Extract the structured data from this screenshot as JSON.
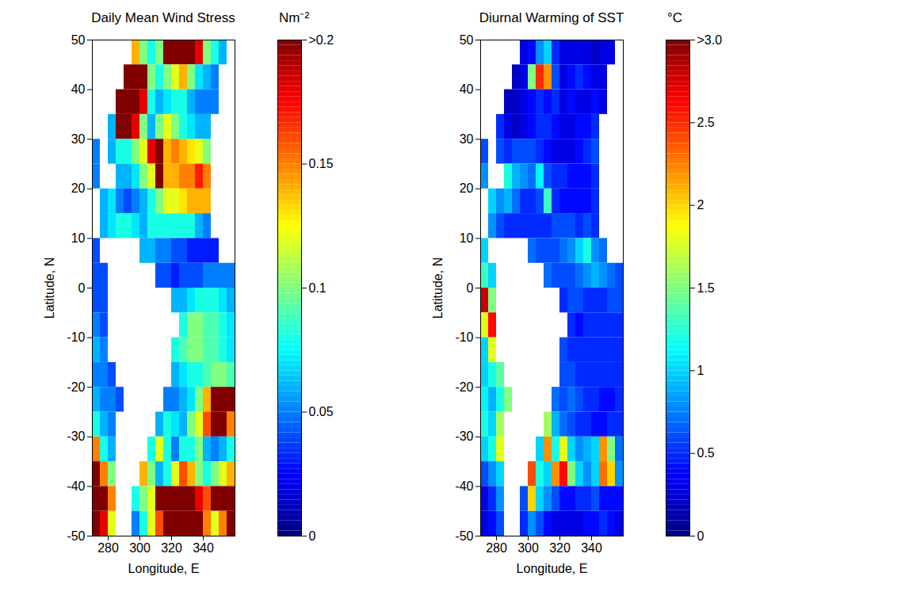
{
  "chart_data": [
    {
      "type": "heatmap",
      "title": "Daily Mean Wind Stress",
      "xlabel": "Longitude, E",
      "ylabel": "Latitude, N",
      "xlim": [
        270,
        360
      ],
      "xticks": [
        280,
        300,
        320,
        340
      ],
      "ylim": [
        -50,
        50
      ],
      "yticks": [
        -50,
        -40,
        -30,
        -20,
        -10,
        0,
        10,
        20,
        30,
        40,
        50
      ],
      "x": [
        272.5,
        277.5,
        282.5,
        287.5,
        292.5,
        297.5,
        302.5,
        307.5,
        312.5,
        317.5,
        322.5,
        327.5,
        332.5,
        337.5,
        342.5,
        347.5,
        352.5,
        357.5
      ],
      "y": [
        47.5,
        42.5,
        37.5,
        32.5,
        27.5,
        22.5,
        17.5,
        12.5,
        7.5,
        2.5,
        -2.5,
        -7.5,
        -12.5,
        -17.5,
        -22.5,
        -27.5,
        -32.5,
        -37.5,
        -42.5,
        -47.5
      ],
      "z": [
        [
          null,
          null,
          null,
          null,
          null,
          0.14,
          0.1,
          0.08,
          0.1,
          0.22,
          0.25,
          0.25,
          0.22,
          0.18,
          0.1,
          0.08,
          0.06,
          null
        ],
        [
          null,
          null,
          null,
          null,
          0.22,
          0.25,
          0.22,
          0.1,
          0.08,
          0.1,
          0.12,
          0.14,
          0.1,
          0.07,
          0.06,
          0.05,
          null,
          null
        ],
        [
          null,
          null,
          null,
          0.22,
          0.25,
          0.24,
          0.18,
          0.08,
          0.06,
          0.07,
          0.08,
          0.08,
          0.06,
          0.05,
          0.05,
          0.05,
          null,
          null
        ],
        [
          null,
          null,
          0.06,
          0.2,
          0.22,
          0.18,
          0.1,
          0.06,
          0.1,
          0.12,
          0.1,
          0.08,
          0.07,
          0.06,
          0.06,
          null,
          null,
          null
        ],
        [
          0.05,
          null,
          0.06,
          0.08,
          0.08,
          0.1,
          0.12,
          0.18,
          0.22,
          0.14,
          0.15,
          0.14,
          0.13,
          0.12,
          0.1,
          null,
          null,
          null
        ],
        [
          0.05,
          null,
          null,
          0.06,
          0.06,
          0.07,
          0.1,
          0.12,
          0.2,
          0.14,
          0.14,
          0.15,
          0.15,
          0.17,
          0.15,
          null,
          null,
          null
        ],
        [
          null,
          0.06,
          0.07,
          0.05,
          0.04,
          0.05,
          0.06,
          0.08,
          0.1,
          0.12,
          0.12,
          0.13,
          0.14,
          0.14,
          0.14,
          null,
          null,
          null
        ],
        [
          null,
          0.06,
          0.07,
          0.08,
          0.08,
          0.07,
          0.06,
          0.08,
          0.08,
          0.08,
          0.08,
          0.08,
          0.08,
          0.06,
          0.05,
          null,
          null,
          null
        ],
        [
          0.04,
          null,
          null,
          null,
          null,
          null,
          0.06,
          0.06,
          0.05,
          0.05,
          0.04,
          0.04,
          0.03,
          0.03,
          0.03,
          0.03,
          null,
          null
        ],
        [
          0.04,
          0.04,
          null,
          null,
          null,
          null,
          null,
          null,
          0.04,
          0.04,
          0.03,
          0.04,
          0.04,
          0.04,
          0.05,
          0.05,
          0.05,
          0.05
        ],
        [
          0.04,
          0.04,
          null,
          null,
          null,
          null,
          null,
          null,
          null,
          null,
          0.06,
          0.06,
          0.07,
          0.08,
          0.08,
          0.08,
          0.07,
          0.06
        ],
        [
          0.05,
          0.04,
          null,
          null,
          null,
          null,
          null,
          null,
          null,
          null,
          null,
          0.08,
          0.1,
          0.1,
          0.09,
          0.09,
          0.08,
          0.07
        ],
        [
          0.06,
          0.05,
          null,
          null,
          null,
          null,
          null,
          null,
          null,
          null,
          0.08,
          0.09,
          0.1,
          0.1,
          0.09,
          0.09,
          0.08,
          0.07
        ],
        [
          0.05,
          0.05,
          0.04,
          null,
          null,
          null,
          null,
          null,
          null,
          null,
          0.06,
          0.07,
          0.08,
          0.08,
          0.09,
          0.1,
          0.1,
          0.09
        ],
        [
          0.06,
          0.05,
          0.05,
          0.04,
          null,
          null,
          null,
          null,
          null,
          0.05,
          0.05,
          0.06,
          0.07,
          0.1,
          0.14,
          0.2,
          0.22,
          0.2
        ],
        [
          0.08,
          0.06,
          0.05,
          null,
          null,
          null,
          null,
          null,
          0.06,
          0.08,
          0.07,
          0.06,
          0.1,
          0.12,
          0.16,
          0.2,
          0.2,
          0.15
        ],
        [
          0.15,
          0.08,
          0.06,
          null,
          null,
          null,
          null,
          0.08,
          0.12,
          0.08,
          0.05,
          0.08,
          0.08,
          0.1,
          0.06,
          0.05,
          0.06,
          0.08
        ],
        [
          0.22,
          0.15,
          0.1,
          null,
          null,
          null,
          0.14,
          0.1,
          0.06,
          0.08,
          0.12,
          0.16,
          0.14,
          0.1,
          0.08,
          0.1,
          0.12,
          0.14
        ],
        [
          0.25,
          0.2,
          0.15,
          null,
          null,
          0.08,
          0.1,
          0.12,
          0.2,
          0.22,
          0.24,
          0.22,
          0.2,
          0.18,
          0.16,
          0.2,
          0.22,
          0.22
        ],
        [
          0.22,
          0.18,
          0.12,
          null,
          null,
          0.05,
          0.08,
          0.12,
          0.16,
          0.22,
          0.25,
          0.25,
          0.24,
          0.2,
          0.15,
          0.12,
          0.15,
          0.2
        ]
      ],
      "colorbar": {
        "label": "Nm⁻²",
        "lim": [
          0,
          0.2
        ],
        "ticks": [
          0,
          0.05,
          0.1,
          0.15,
          {
            "value": 0.2,
            "label": ">0.2"
          }
        ]
      }
    },
    {
      "type": "heatmap",
      "title": "Diurnal Warming of SST",
      "xlabel": "Longitude, E",
      "ylabel": "Latitude, N",
      "xlim": [
        270,
        360
      ],
      "xticks": [
        280,
        300,
        320,
        340
      ],
      "ylim": [
        -50,
        50
      ],
      "yticks": [
        -50,
        -40,
        -30,
        -20,
        -10,
        0,
        10,
        20,
        30,
        40,
        50
      ],
      "x": [
        272.5,
        277.5,
        282.5,
        287.5,
        292.5,
        297.5,
        302.5,
        307.5,
        312.5,
        317.5,
        322.5,
        327.5,
        332.5,
        337.5,
        342.5,
        347.5,
        352.5,
        357.5
      ],
      "y": [
        47.5,
        42.5,
        37.5,
        32.5,
        27.5,
        22.5,
        17.5,
        12.5,
        7.5,
        2.5,
        -2.5,
        -7.5,
        -12.5,
        -17.5,
        -22.5,
        -27.5,
        -32.5,
        -37.5,
        -42.5,
        -47.5
      ],
      "z": [
        [
          null,
          null,
          null,
          null,
          null,
          0.3,
          0.4,
          0.8,
          1.0,
          0.5,
          0.3,
          0.3,
          0.3,
          0.3,
          0.2,
          0.3,
          0.3,
          null
        ],
        [
          null,
          null,
          null,
          null,
          0.2,
          0.3,
          1.5,
          2.5,
          2.2,
          0.6,
          0.3,
          0.4,
          0.5,
          0.4,
          0.3,
          0.3,
          null,
          null
        ],
        [
          null,
          null,
          null,
          0.2,
          0.2,
          0.3,
          0.4,
          0.5,
          0.4,
          0.5,
          0.3,
          0.4,
          0.3,
          0.3,
          0.4,
          0.3,
          null,
          null
        ],
        [
          null,
          null,
          0.5,
          0.3,
          0.2,
          0.3,
          0.4,
          0.5,
          0.5,
          0.4,
          0.3,
          0.3,
          0.4,
          0.4,
          0.5,
          null,
          null,
          null
        ],
        [
          0.6,
          null,
          0.6,
          0.5,
          0.6,
          0.6,
          0.6,
          0.5,
          0.4,
          0.3,
          0.3,
          0.3,
          0.4,
          0.5,
          0.6,
          null,
          null,
          null
        ],
        [
          0.8,
          null,
          null,
          1.2,
          0.9,
          0.8,
          0.7,
          1.1,
          0.6,
          0.5,
          0.5,
          0.4,
          0.4,
          0.4,
          0.5,
          null,
          null,
          null
        ],
        [
          null,
          1.0,
          0.8,
          0.9,
          0.7,
          0.5,
          0.5,
          0.6,
          1.3,
          0.5,
          0.4,
          0.4,
          0.4,
          0.4,
          0.5,
          null,
          null,
          null
        ],
        [
          null,
          0.8,
          0.6,
          0.5,
          0.5,
          0.5,
          0.5,
          0.5,
          0.5,
          0.6,
          0.6,
          0.6,
          0.5,
          0.6,
          0.5,
          null,
          null,
          null
        ],
        [
          1.0,
          null,
          null,
          null,
          null,
          null,
          0.7,
          0.6,
          0.6,
          0.6,
          0.7,
          0.8,
          1.0,
          1.2,
          0.8,
          0.7,
          null,
          null
        ],
        [
          1.3,
          1.0,
          null,
          null,
          null,
          null,
          null,
          null,
          0.7,
          0.6,
          0.6,
          0.6,
          0.7,
          0.8,
          0.9,
          0.8,
          0.7,
          0.6
        ],
        [
          2.8,
          1.5,
          null,
          null,
          null,
          null,
          null,
          null,
          null,
          null,
          0.5,
          0.6,
          0.6,
          0.5,
          0.5,
          0.5,
          0.6,
          0.6
        ],
        [
          1.8,
          2.6,
          null,
          null,
          null,
          null,
          null,
          null,
          null,
          null,
          null,
          0.5,
          0.4,
          0.5,
          0.5,
          0.5,
          0.5,
          0.5
        ],
        [
          1.0,
          1.8,
          null,
          null,
          null,
          null,
          null,
          null,
          null,
          null,
          0.6,
          0.5,
          0.5,
          0.5,
          0.5,
          0.5,
          0.5,
          0.5
        ],
        [
          1.0,
          1.2,
          1.4,
          null,
          null,
          null,
          null,
          null,
          null,
          null,
          0.6,
          0.6,
          0.5,
          0.5,
          0.5,
          0.5,
          0.5,
          0.5
        ],
        [
          1.1,
          0.9,
          1.2,
          1.5,
          null,
          null,
          null,
          null,
          null,
          0.7,
          0.6,
          0.7,
          0.6,
          0.5,
          0.5,
          0.4,
          0.4,
          0.5
        ],
        [
          1.2,
          1.0,
          1.6,
          null,
          null,
          null,
          null,
          null,
          1.6,
          0.9,
          0.7,
          0.6,
          0.5,
          0.5,
          0.4,
          0.4,
          0.5,
          0.5
        ],
        [
          1.0,
          1.2,
          1.8,
          null,
          null,
          null,
          null,
          1.0,
          2.2,
          1.2,
          1.8,
          1.0,
          0.8,
          0.9,
          1.0,
          2.2,
          1.5,
          0.7
        ],
        [
          0.6,
          0.8,
          1.0,
          null,
          null,
          null,
          2.4,
          1.2,
          1.0,
          2.2,
          2.6,
          1.5,
          1.0,
          0.8,
          1.0,
          2.3,
          2.0,
          0.8
        ],
        [
          0.3,
          0.5,
          0.8,
          null,
          null,
          0.6,
          2.0,
          1.0,
          0.8,
          0.6,
          0.4,
          0.4,
          0.5,
          0.5,
          0.6,
          0.4,
          0.4,
          0.4
        ],
        [
          0.3,
          0.4,
          0.6,
          null,
          null,
          0.5,
          0.8,
          0.6,
          0.4,
          0.3,
          0.3,
          0.3,
          0.3,
          0.4,
          0.4,
          0.5,
          0.4,
          0.3
        ]
      ],
      "colorbar": {
        "label": "°C",
        "lim": [
          0,
          3
        ],
        "ticks": [
          0,
          0.5,
          1,
          1.5,
          2,
          2.5,
          {
            "value": 3,
            "label": ">3.0"
          }
        ]
      }
    }
  ]
}
